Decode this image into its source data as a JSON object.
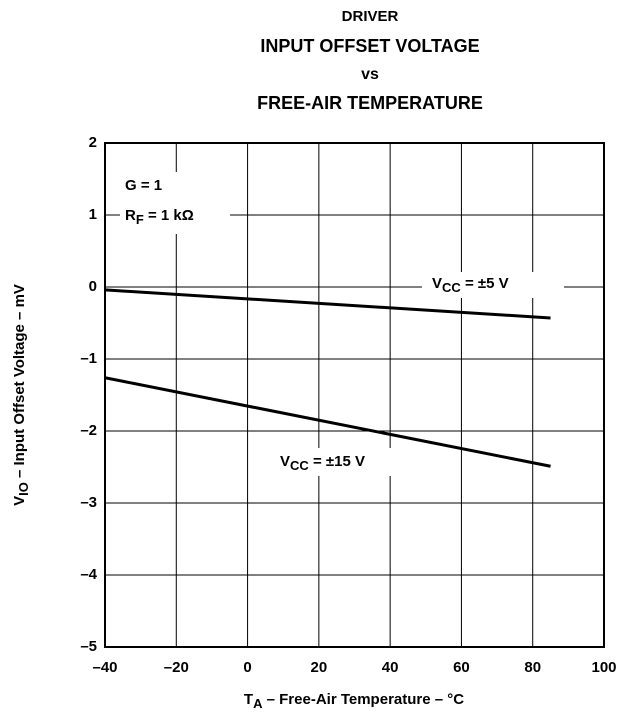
{
  "chart_data": {
    "type": "line",
    "title": [
      "DRIVER",
      "INPUT OFFSET VOLTAGE",
      "vs",
      "FREE-AIR TEMPERATURE"
    ],
    "x_label": [
      "T",
      "A",
      " – Free-Air Temperature – °C"
    ],
    "y_label": [
      "V",
      "IO",
      " – Input Offset Voltage – mV"
    ],
    "annotations": [
      [
        "G = 1"
      ],
      [
        "R",
        "F",
        " = 1 kΩ"
      ]
    ],
    "x": [
      -40,
      85
    ],
    "series": [
      {
        "name": [
          "V",
          "CC",
          " = ±5 V"
        ],
        "color": "#000000",
        "values": [
          -0.04,
          -0.43
        ]
      },
      {
        "name": [
          "V",
          "CC",
          " = ±15 V"
        ],
        "color": "#000000",
        "values": [
          -1.26,
          -2.49
        ]
      }
    ],
    "xlim": [
      -40,
      100
    ],
    "xticks": [
      {
        "value": -40,
        "label": "–40"
      },
      {
        "value": -20,
        "label": "–20"
      },
      0,
      20,
      40,
      60,
      80,
      100
    ],
    "ylim": [
      -5,
      2
    ],
    "yticks": [
      {
        "value": -5,
        "label": "–5"
      },
      {
        "value": -4,
        "label": "–4"
      },
      {
        "value": -3,
        "label": "–3"
      },
      {
        "value": -2,
        "label": "–2"
      },
      {
        "value": -1,
        "label": "–1"
      },
      0,
      1,
      2
    ],
    "grid": true
  }
}
